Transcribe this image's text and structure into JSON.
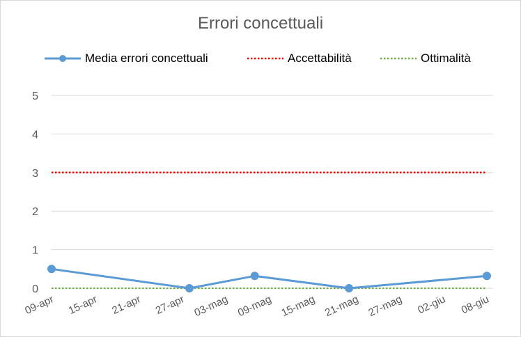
{
  "chart_data": {
    "type": "line",
    "title": "Errori concettuali",
    "xlabel": "",
    "ylabel": "",
    "x_ticks": [
      "09-apr",
      "15-apr",
      "21-apr",
      "27-apr",
      "03-mag",
      "09-mag",
      "15-mag",
      "21-mag",
      "27-mag",
      "02-giu",
      "08-giu"
    ],
    "y_ticks": [
      0,
      1,
      2,
      3,
      4,
      5
    ],
    "ylim": [
      0,
      5
    ],
    "xlim": [
      "09-apr",
      "08-giu"
    ],
    "grid": true,
    "legend_position": "top",
    "series": [
      {
        "name": "Media errori concettuali",
        "style": "solid-with-markers",
        "color": "#5b9bd5",
        "points": [
          {
            "x": "09-apr",
            "y": 0.5
          },
          {
            "x": "28-apr",
            "y": 0
          },
          {
            "x": "07-mag",
            "y": 0.32
          },
          {
            "x": "20-mag",
            "y": 0
          },
          {
            "x": "08-giu",
            "y": 0.32
          }
        ]
      },
      {
        "name": "Accettabilità",
        "style": "dotted",
        "color": "#ff0000",
        "points": [
          {
            "x": "09-apr",
            "y": 3
          },
          {
            "x": "08-giu",
            "y": 3
          }
        ]
      },
      {
        "name": "Ottimalità",
        "style": "dotted",
        "color": "#70ad47",
        "points": [
          {
            "x": "09-apr",
            "y": 0
          },
          {
            "x": "08-giu",
            "y": 0
          }
        ]
      }
    ]
  }
}
